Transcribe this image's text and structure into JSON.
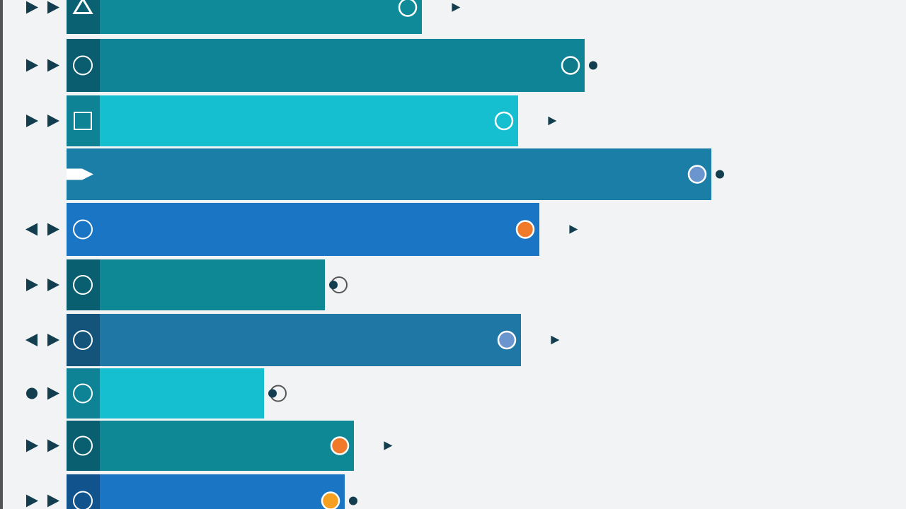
{
  "chart_data": {
    "type": "bar",
    "orientation": "horizontal",
    "categories": [
      null,
      null,
      null,
      null,
      null,
      null,
      null,
      null,
      null,
      null
    ],
    "values": [
      502,
      732,
      638,
      911,
      668,
      365,
      642,
      279,
      406,
      393
    ],
    "colors": [
      "#0f8a99",
      "#0e8496",
      "#16bfd0",
      "#1a7ea6",
      "#1a76c4",
      "#0f8896",
      "#1f77a6",
      "#16bfd0",
      "#0f8896",
      "#1a76c4"
    ]
  }
}
